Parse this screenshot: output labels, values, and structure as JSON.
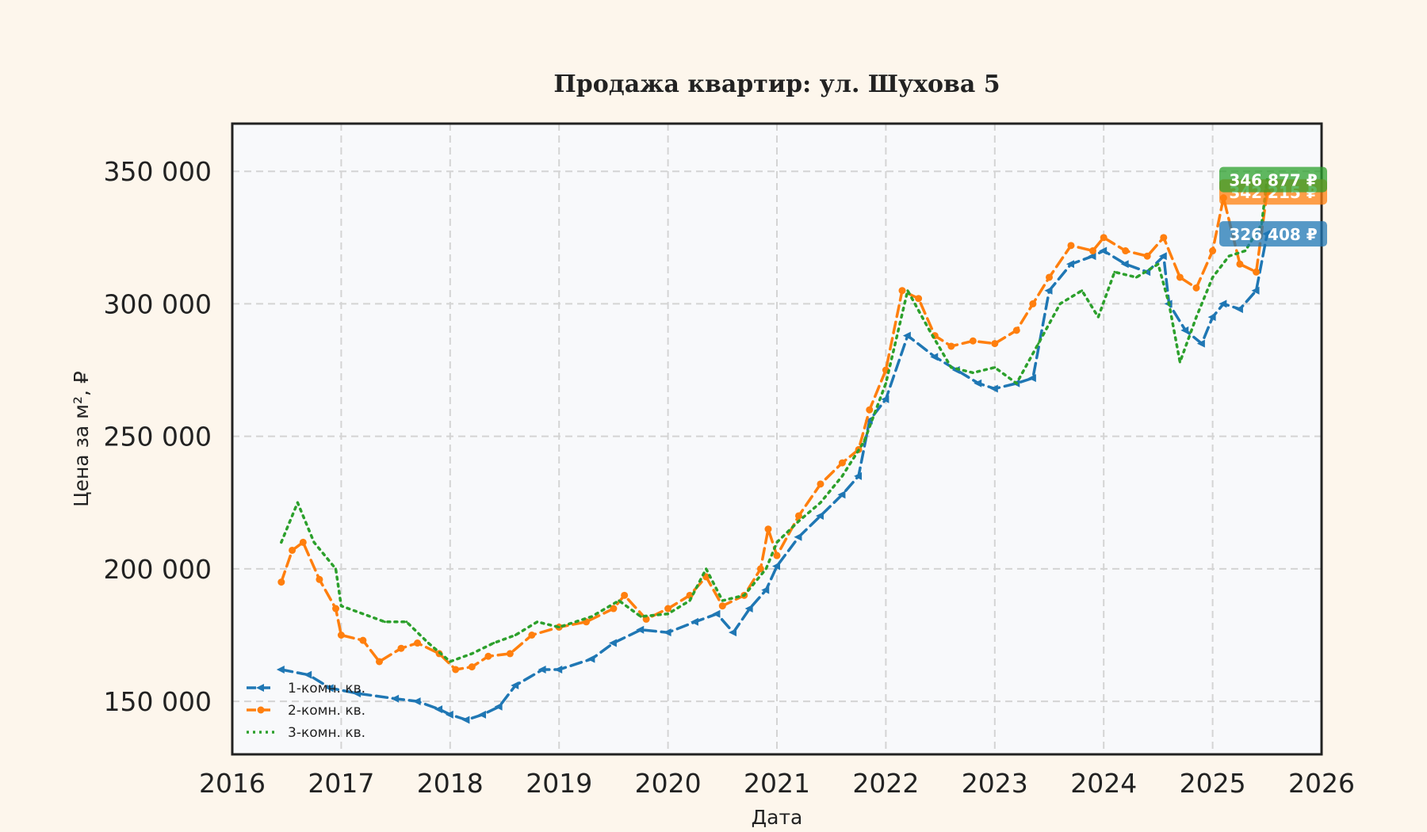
{
  "chart_data": {
    "type": "line",
    "title": "Продажа квартир: ул. Шухова 5",
    "xlabel": "Дата",
    "ylabel": "Цена за м², ₽",
    "xlim": [
      2016,
      2026
    ],
    "ylim": [
      130000,
      368000
    ],
    "x_ticks": [
      "2016",
      "2017",
      "2018",
      "2019",
      "2020",
      "2021",
      "2022",
      "2023",
      "2024",
      "2025",
      "2026"
    ],
    "y_ticks": [
      {
        "value": 150000,
        "label": "150 000"
      },
      {
        "value": 200000,
        "label": "200 000"
      },
      {
        "value": 250000,
        "label": "250 000"
      },
      {
        "value": 300000,
        "label": "300 000"
      },
      {
        "value": 350000,
        "label": "350 000"
      }
    ],
    "grid": true,
    "legend_position": "bottom-left",
    "series": [
      {
        "name": "1-комн. кв.",
        "color": "#1f77b4",
        "style": "dashed",
        "marker": "triangle-left",
        "end_label": "326 408 ₽",
        "x": [
          2016.45,
          2016.7,
          2016.9,
          2017.15,
          2017.5,
          2017.7,
          2017.9,
          2018.0,
          2018.15,
          2018.3,
          2018.45,
          2018.6,
          2018.85,
          2019.0,
          2019.3,
          2019.5,
          2019.75,
          2020.0,
          2020.25,
          2020.45,
          2020.6,
          2020.75,
          2020.9,
          2021.0,
          2021.2,
          2021.4,
          2021.6,
          2021.75,
          2021.85,
          2022.0,
          2022.2,
          2022.45,
          2022.65,
          2022.85,
          2023.0,
          2023.2,
          2023.35,
          2023.5,
          2023.7,
          2023.9,
          2024.0,
          2024.2,
          2024.4,
          2024.55,
          2024.6,
          2024.75,
          2024.9,
          2025.0,
          2025.1,
          2025.25,
          2025.4,
          2025.5
        ],
        "y": [
          162000,
          160000,
          155000,
          153000,
          151000,
          150000,
          147000,
          145000,
          143000,
          145000,
          148000,
          156000,
          162000,
          162000,
          166000,
          172000,
          177000,
          176000,
          180000,
          183000,
          176000,
          185000,
          192000,
          201000,
          212000,
          220000,
          228000,
          235000,
          256000,
          264000,
          288000,
          280000,
          275000,
          270000,
          268000,
          270000,
          272000,
          305000,
          315000,
          318000,
          320000,
          315000,
          312000,
          318000,
          300000,
          290000,
          285000,
          295000,
          300000,
          298000,
          305000,
          326408
        ]
      },
      {
        "name": "2-комн. кв.",
        "color": "#ff7f0e",
        "style": "dashed",
        "marker": "circle",
        "end_label": "342 215 ₽",
        "x": [
          2016.45,
          2016.55,
          2016.65,
          2016.8,
          2016.95,
          2017.0,
          2017.2,
          2017.35,
          2017.55,
          2017.7,
          2017.9,
          2018.05,
          2018.2,
          2018.35,
          2018.55,
          2018.75,
          2019.0,
          2019.25,
          2019.5,
          2019.6,
          2019.8,
          2020.0,
          2020.2,
          2020.35,
          2020.5,
          2020.7,
          2020.85,
          2020.92,
          2021.0,
          2021.2,
          2021.4,
          2021.6,
          2021.75,
          2021.85,
          2022.0,
          2022.15,
          2022.3,
          2022.45,
          2022.6,
          2022.8,
          2023.0,
          2023.2,
          2023.35,
          2023.5,
          2023.7,
          2023.9,
          2024.0,
          2024.2,
          2024.4,
          2024.55,
          2024.7,
          2024.85,
          2025.0,
          2025.1,
          2025.25,
          2025.4,
          2025.5
        ],
        "y": [
          195000,
          207000,
          210000,
          196000,
          185000,
          175000,
          173000,
          165000,
          170000,
          172000,
          168000,
          162000,
          163000,
          167000,
          168000,
          175000,
          178000,
          180000,
          185000,
          190000,
          181000,
          185000,
          190000,
          197000,
          186000,
          190000,
          200000,
          215000,
          205000,
          220000,
          232000,
          240000,
          245000,
          260000,
          275000,
          305000,
          302000,
          288000,
          284000,
          286000,
          285000,
          290000,
          300000,
          310000,
          322000,
          320000,
          325000,
          320000,
          318000,
          325000,
          310000,
          306000,
          320000,
          340000,
          315000,
          312000,
          342215
        ]
      },
      {
        "name": "3-комн. кв.",
        "color": "#2ca02c",
        "style": "dotted",
        "marker": "none",
        "end_label": "346 877 ₽",
        "x": [
          2016.45,
          2016.6,
          2016.75,
          2016.95,
          2017.0,
          2017.2,
          2017.4,
          2017.6,
          2017.8,
          2018.0,
          2018.2,
          2018.4,
          2018.6,
          2018.8,
          2019.0,
          2019.3,
          2019.55,
          2019.75,
          2020.0,
          2020.2,
          2020.35,
          2020.5,
          2020.7,
          2020.9,
          2021.0,
          2021.2,
          2021.4,
          2021.6,
          2021.8,
          2022.0,
          2022.2,
          2022.4,
          2022.6,
          2022.8,
          2023.0,
          2023.2,
          2023.4,
          2023.6,
          2023.8,
          2023.95,
          2024.1,
          2024.3,
          2024.5,
          2024.6,
          2024.7,
          2024.85,
          2025.0,
          2025.15,
          2025.3,
          2025.45,
          2025.5
        ],
        "y": [
          210000,
          225000,
          210000,
          200000,
          186000,
          183000,
          180000,
          180000,
          172000,
          165000,
          168000,
          172000,
          175000,
          180000,
          178000,
          182000,
          188000,
          182000,
          183000,
          188000,
          200000,
          188000,
          190000,
          200000,
          210000,
          218000,
          225000,
          235000,
          248000,
          270000,
          305000,
          290000,
          276000,
          274000,
          276000,
          270000,
          285000,
          300000,
          305000,
          295000,
          312000,
          310000,
          315000,
          300000,
          278000,
          295000,
          310000,
          318000,
          320000,
          330000,
          346877
        ]
      }
    ]
  }
}
